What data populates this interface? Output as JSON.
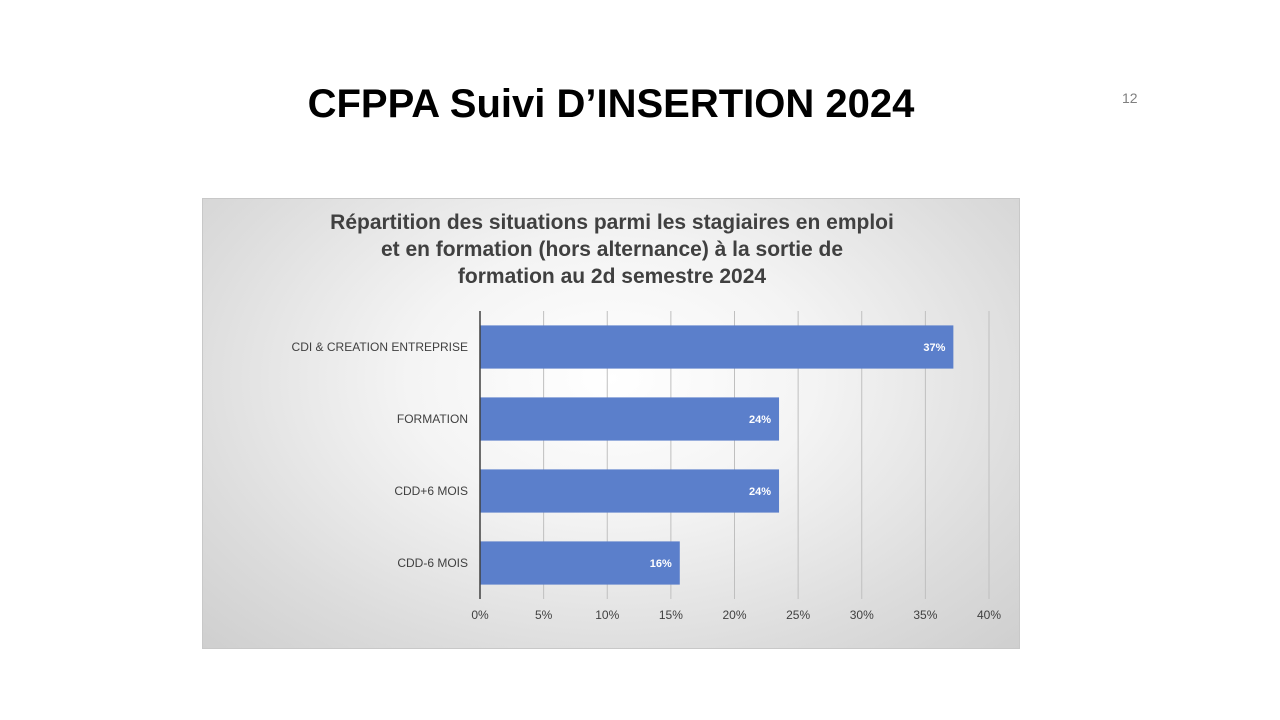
{
  "slide": {
    "title": "CFPPA Suivi D’INSERTION  2024",
    "number": "12"
  },
  "chart_data": {
    "type": "bar",
    "orientation": "horizontal",
    "title_lines": [
      "Répartition des situations parmi les stagiaires en emploi",
      "et en formation (hors alternance) à la sortie de",
      "formation au 2d semestre 2024"
    ],
    "categories": [
      "CDI & CREATION ENTREPRISE",
      "FORMATION",
      "CDD+6 MOIS",
      "CDD-6 MOIS"
    ],
    "values": [
      37.2,
      23.5,
      23.5,
      15.7
    ],
    "data_labels": [
      "37%",
      "24%",
      "24%",
      "16%"
    ],
    "x_ticks": [
      "0%",
      "5%",
      "10%",
      "15%",
      "20%",
      "25%",
      "30%",
      "35%",
      "40%"
    ],
    "xlim": [
      0,
      40
    ],
    "grid": true,
    "bar_color": "#5b7fcb",
    "legend": "none"
  }
}
